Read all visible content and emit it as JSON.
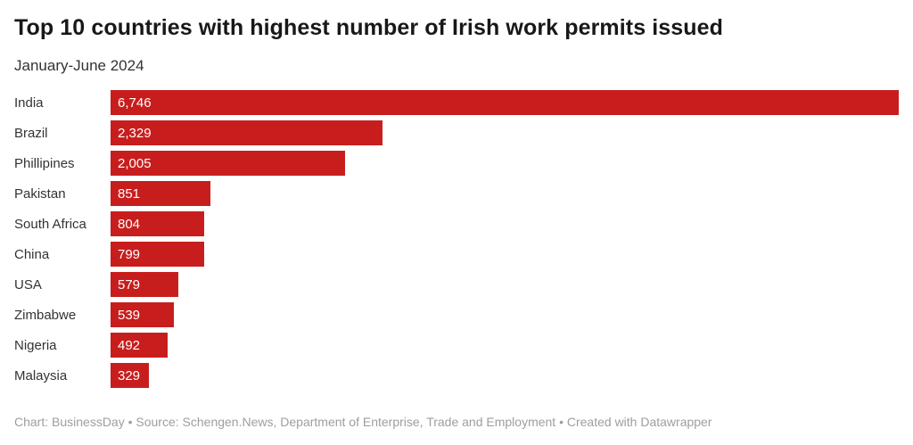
{
  "header": {
    "title": "Top 10 countries with highest number of Irish work permits issued",
    "subtitle": "January-June 2024"
  },
  "chart_data": {
    "type": "bar",
    "orientation": "horizontal",
    "title": "Top 10 countries with highest number of Irish work permits issued",
    "subtitle": "January-June 2024",
    "categories": [
      "India",
      "Brazil",
      "Phillipines",
      "Pakistan",
      "South Africa",
      "China",
      "USA",
      "Zimbabwe",
      "Nigeria",
      "Malaysia"
    ],
    "values": [
      6746,
      2329,
      2005,
      851,
      804,
      799,
      579,
      539,
      492,
      329
    ],
    "value_labels": [
      "6,746",
      "2,329",
      "2,005",
      "851",
      "804",
      "799",
      "579",
      "539",
      "492",
      "329"
    ],
    "xlabel": "",
    "ylabel": "",
    "xlim": [
      0,
      6746
    ],
    "grid": false,
    "legend_position": "none",
    "bar_color": "#c71e1d",
    "value_label_color": "#ffffff",
    "category_label_color": "#333333"
  },
  "footer": {
    "text": "Chart: BusinessDay • Source: Schengen.News, Department of Enterprise, Trade and Employment • Created with Datawrapper"
  }
}
